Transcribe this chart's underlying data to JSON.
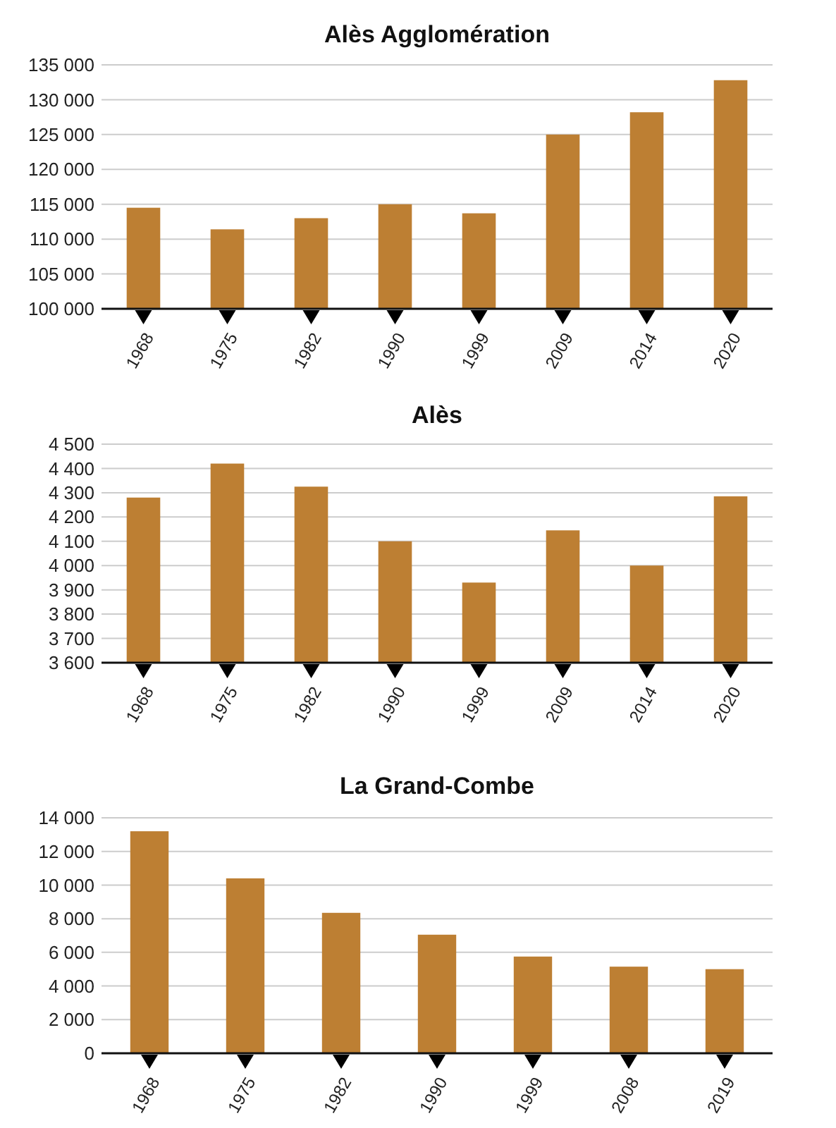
{
  "chart_data": [
    {
      "type": "bar",
      "title": "Alès Agglomération",
      "categories": [
        "1968",
        "1975",
        "1982",
        "1990",
        "1999",
        "2009",
        "2014",
        "2020"
      ],
      "values": [
        114500,
        111400,
        113000,
        115000,
        113700,
        125000,
        128200,
        132800
      ],
      "color": "#bd7f33",
      "ylim": [
        100000,
        135000
      ],
      "yticks": [
        {
          "value": 100000,
          "label": "100 000"
        },
        {
          "value": 105000,
          "label": "105 000"
        },
        {
          "value": 110000,
          "label": "110 000"
        },
        {
          "value": 115000,
          "label": "115 000"
        },
        {
          "value": 120000,
          "label": "120 000"
        },
        {
          "value": 125000,
          "label": "125 000"
        },
        {
          "value": 130000,
          "label": "130 000"
        },
        {
          "value": 135000,
          "label": "135 000"
        }
      ],
      "grid": "y"
    },
    {
      "type": "bar",
      "title": "Alès",
      "categories": [
        "1968",
        "1975",
        "1982",
        "1990",
        "1999",
        "2009",
        "2014",
        "2020"
      ],
      "values": [
        4280,
        4420,
        4325,
        4100,
        3930,
        4145,
        4000,
        4285
      ],
      "color": "#bd7f33",
      "ylim": [
        3600,
        4500
      ],
      "yticks": [
        {
          "value": 3600,
          "label": "3 600"
        },
        {
          "value": 3700,
          "label": "3 700"
        },
        {
          "value": 3800,
          "label": "3 800"
        },
        {
          "value": 3900,
          "label": "3 900"
        },
        {
          "value": 4000,
          "label": "4 000"
        },
        {
          "value": 4100,
          "label": "4 100"
        },
        {
          "value": 4200,
          "label": "4 200"
        },
        {
          "value": 4300,
          "label": "4 300"
        },
        {
          "value": 4400,
          "label": "4 400"
        },
        {
          "value": 4500,
          "label": "4 500"
        }
      ],
      "grid": "y"
    },
    {
      "type": "bar",
      "title": "La Grand-Combe",
      "categories": [
        "1968",
        "1975",
        "1982",
        "1990",
        "1999",
        "2008",
        "2019"
      ],
      "values": [
        13200,
        10400,
        8350,
        7050,
        5750,
        5150,
        5000
      ],
      "color": "#bd7f33",
      "ylim": [
        0,
        14000
      ],
      "yticks": [
        0,
        {
          "value": 2000,
          "label": "2 000"
        },
        {
          "value": 4000,
          "label": "4 000"
        },
        {
          "value": 6000,
          "label": "6 000"
        },
        {
          "value": 8000,
          "label": "8 000"
        },
        {
          "value": 10000,
          "label": "10 000"
        },
        {
          "value": 12000,
          "label": "12 000"
        },
        {
          "value": 14000,
          "label": "14 000"
        }
      ],
      "grid": "y"
    }
  ]
}
